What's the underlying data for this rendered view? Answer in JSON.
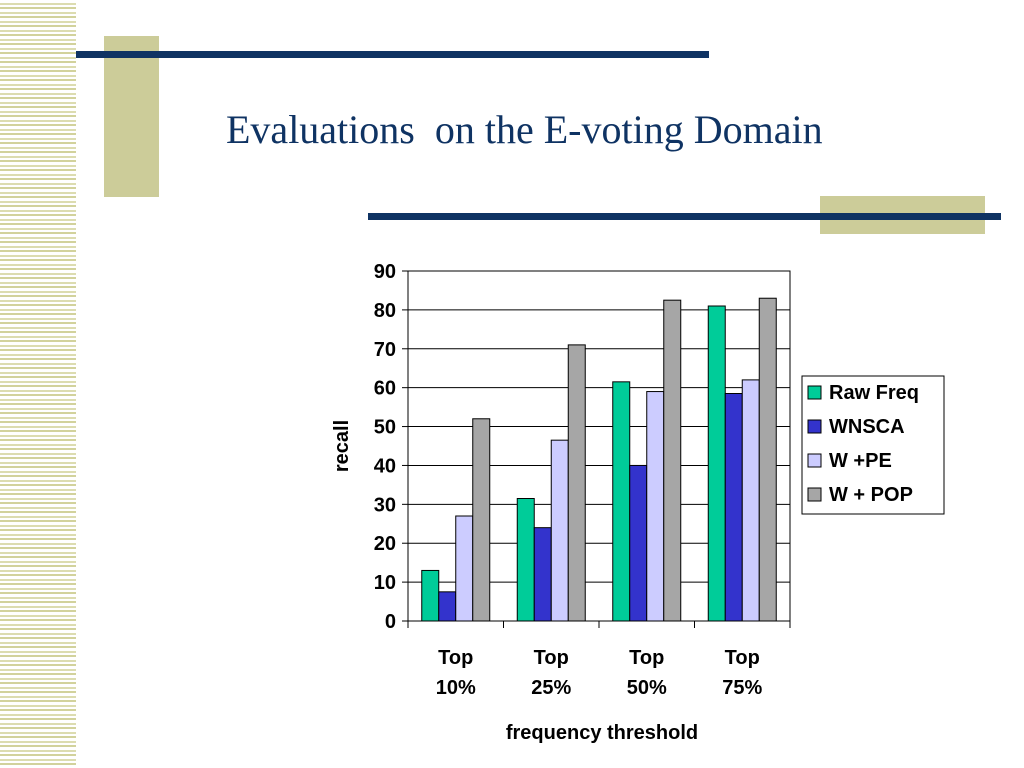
{
  "slide": {
    "title": "Evaluations  on the E-voting Domain"
  },
  "colors": {
    "accent_navy": "#0f3363",
    "accent_khaki": "#cccc99",
    "stripe": "#dcdcb0"
  },
  "chart_data": {
    "type": "bar",
    "categories": [
      [
        "Top",
        "10%"
      ],
      [
        "Top",
        "25%"
      ],
      [
        "Top",
        "50%"
      ],
      [
        "Top",
        "75%"
      ]
    ],
    "series": [
      {
        "name": "Raw Freq",
        "color": "#00cc99",
        "values": [
          13,
          31.5,
          61.5,
          81
        ]
      },
      {
        "name": "WNSCA",
        "color": "#3333cc",
        "values": [
          7.5,
          24,
          40,
          58.5
        ]
      },
      {
        "name": "W +PE",
        "color": "#ccccff",
        "values": [
          27,
          46.5,
          59,
          62
        ]
      },
      {
        "name": "W + POP",
        "color": "#a6a6a6",
        "values": [
          52,
          71,
          82.5,
          83
        ]
      }
    ],
    "ylim": [
      0,
      90
    ],
    "yticks": [
      0,
      10,
      20,
      30,
      40,
      50,
      60,
      70,
      80,
      90
    ],
    "xlabel": "frequency threshold",
    "ylabel": "recall",
    "grid": true,
    "legend": "right"
  }
}
